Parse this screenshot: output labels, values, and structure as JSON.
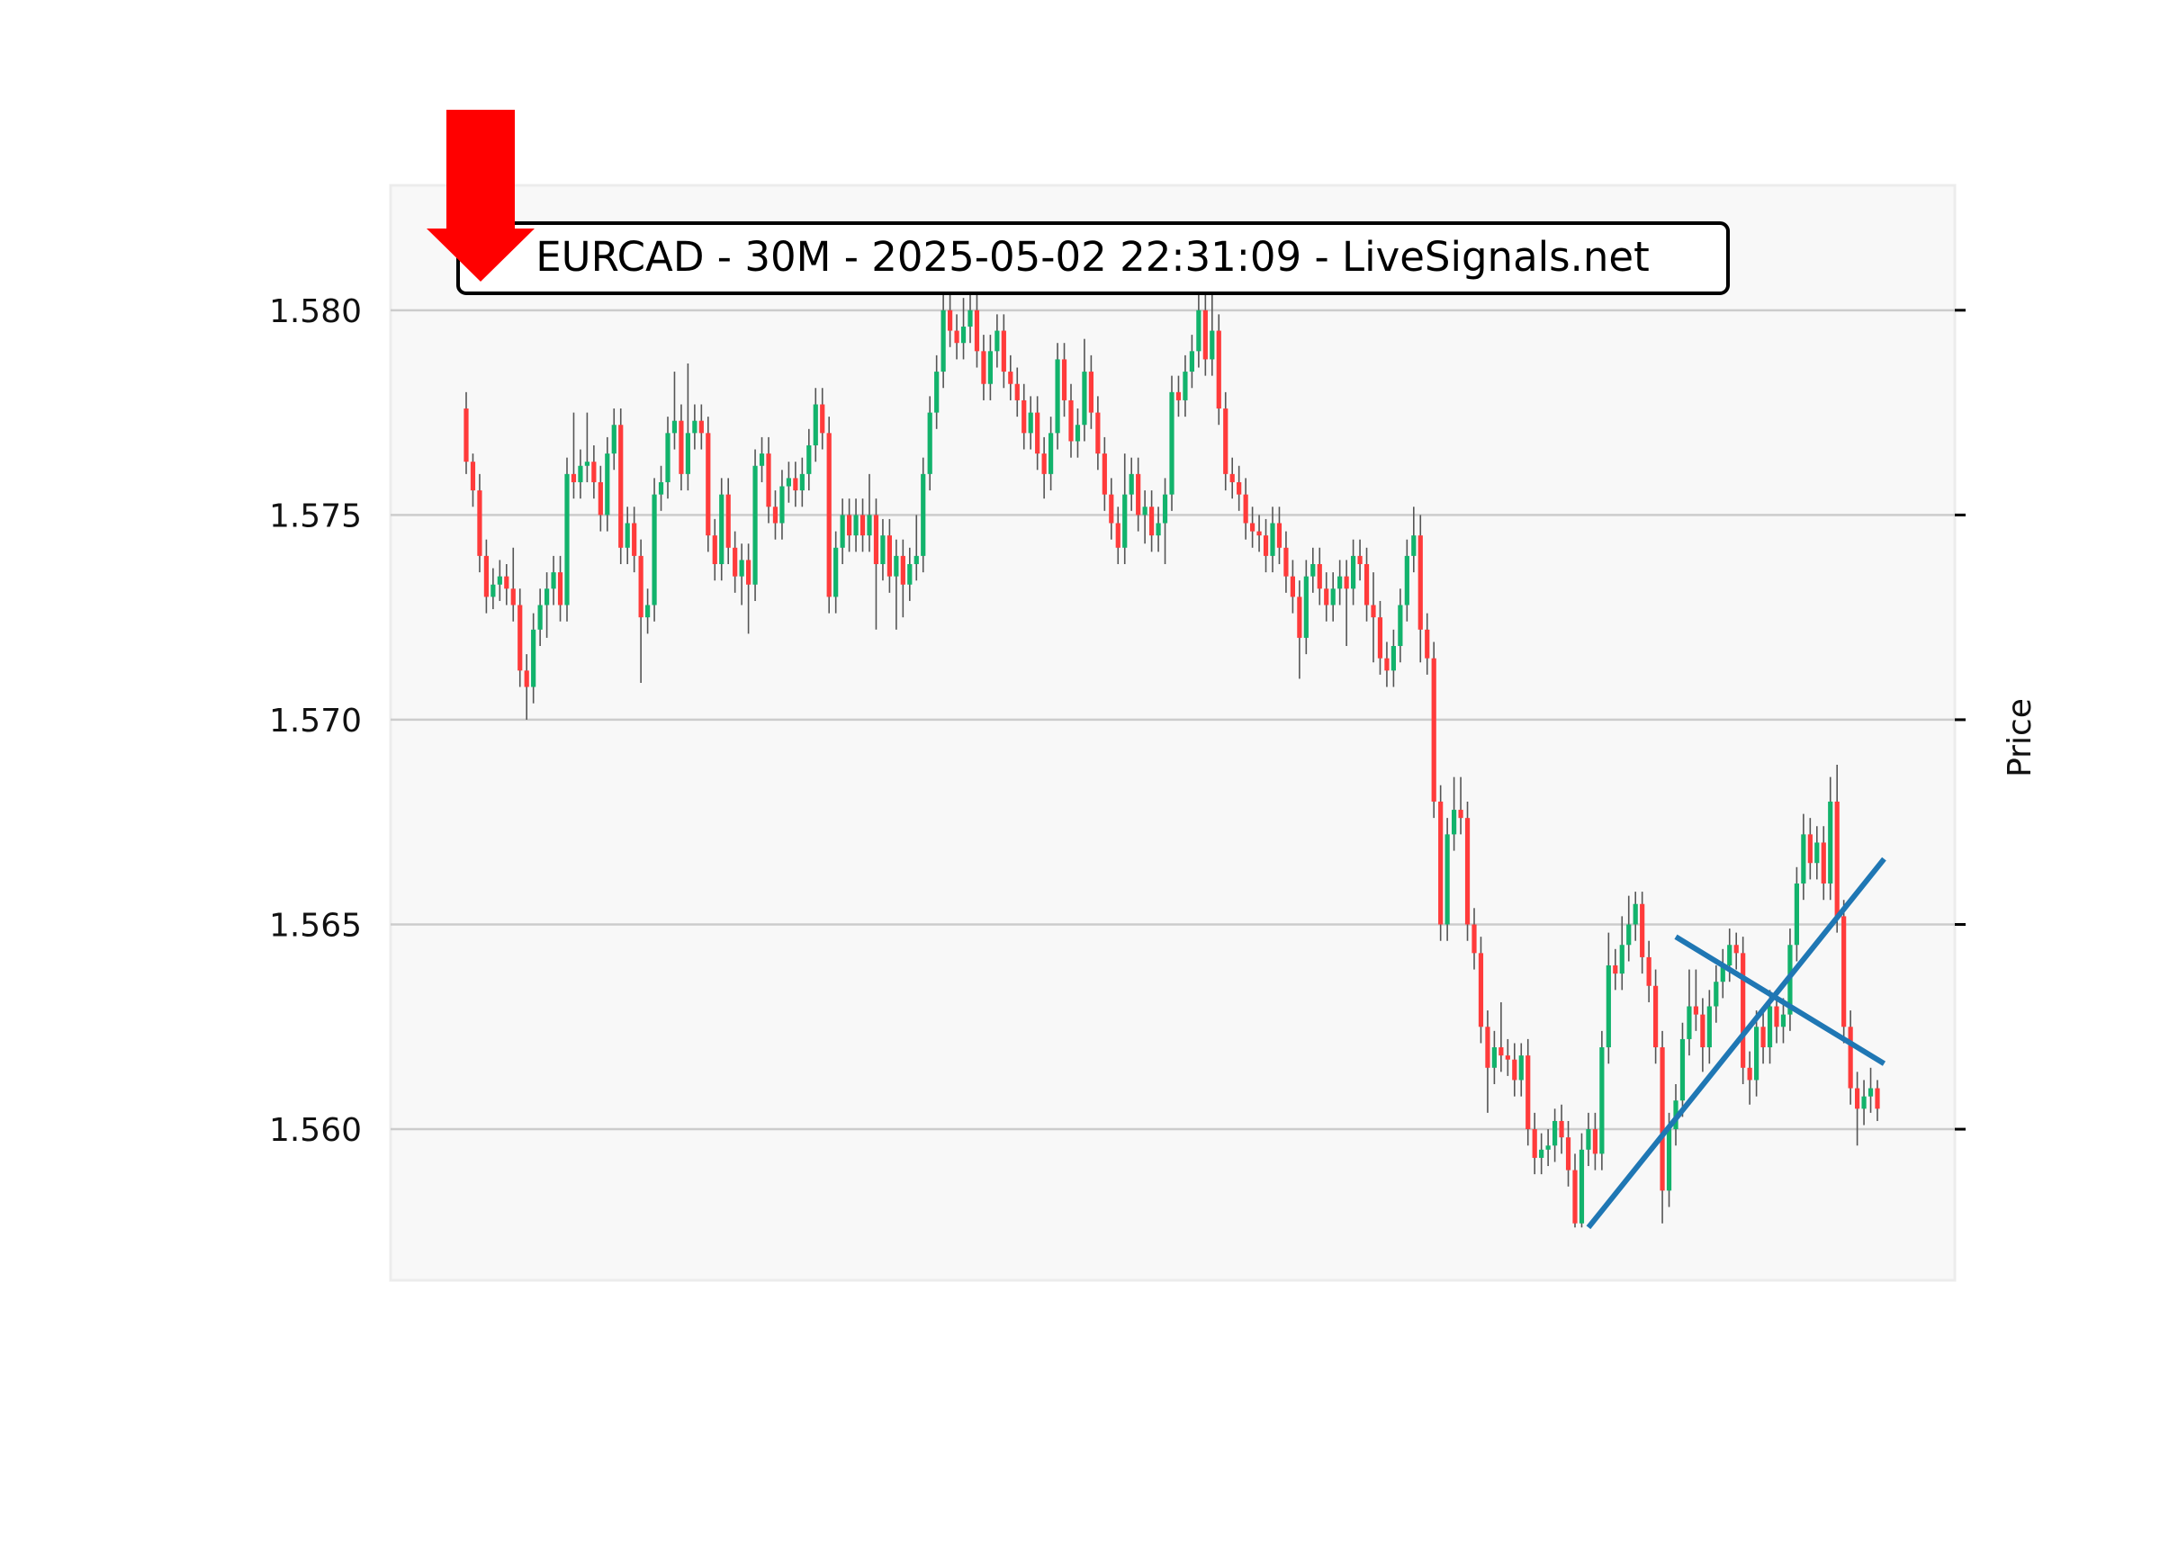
{
  "chart_data": {
    "type": "candlestick",
    "title": "EURCAD - 30M - 2025-05-02 22:31:09 - LiveSignals.net",
    "xlabel": "",
    "ylabel": "Price",
    "ylim": [
      1.55631,
      1.58305
    ],
    "yticks": [
      "1.560",
      "1.565",
      "1.570",
      "1.575",
      "1.580"
    ],
    "ytick_values": [
      1.56,
      1.565,
      1.57,
      1.575,
      1.58
    ],
    "grid": "horizontal",
    "colors": {
      "up": "#12b36c",
      "down": "#ff3b3b",
      "wick": "#555555",
      "trendline": "#1f77b4",
      "arrow": "#ff0000",
      "plot_bg": "#f8f8f8",
      "grid": "#cccccc"
    },
    "signal_arrow": "down",
    "ohlc": [
      [
        1.5776,
        1.578,
        1.576,
        1.5763
      ],
      [
        1.5763,
        1.5765,
        1.5752,
        1.5756
      ],
      [
        1.5756,
        1.576,
        1.5736,
        1.574
      ],
      [
        1.574,
        1.5744,
        1.5726,
        1.573
      ],
      [
        1.573,
        1.5737,
        1.5727,
        1.5733
      ],
      [
        1.5733,
        1.5739,
        1.5729,
        1.5735
      ],
      [
        1.5735,
        1.5738,
        1.5728,
        1.5732
      ],
      [
        1.5732,
        1.5742,
        1.5724,
        1.5728
      ],
      [
        1.5728,
        1.5732,
        1.5708,
        1.5712
      ],
      [
        1.5712,
        1.5716,
        1.57,
        1.5708
      ],
      [
        1.5708,
        1.5726,
        1.5704,
        1.5722
      ],
      [
        1.5722,
        1.5732,
        1.5718,
        1.5728
      ],
      [
        1.5728,
        1.5736,
        1.572,
        1.5732
      ],
      [
        1.5732,
        1.574,
        1.5728,
        1.5736
      ],
      [
        1.5736,
        1.574,
        1.5724,
        1.5728
      ],
      [
        1.5728,
        1.5764,
        1.5724,
        1.576
      ],
      [
        1.576,
        1.5775,
        1.5754,
        1.5758
      ],
      [
        1.5758,
        1.5766,
        1.5754,
        1.5762
      ],
      [
        1.5762,
        1.5775,
        1.5758,
        1.5763
      ],
      [
        1.5763,
        1.5767,
        1.5754,
        1.5758
      ],
      [
        1.5758,
        1.5762,
        1.5746,
        1.575
      ],
      [
        1.575,
        1.5769,
        1.5746,
        1.5765
      ],
      [
        1.5765,
        1.5776,
        1.5761,
        1.5772
      ],
      [
        1.5772,
        1.5776,
        1.5738,
        1.5742
      ],
      [
        1.5742,
        1.5752,
        1.5738,
        1.5748
      ],
      [
        1.5748,
        1.5752,
        1.5736,
        1.574
      ],
      [
        1.574,
        1.5744,
        1.5709,
        1.5725
      ],
      [
        1.5725,
        1.5732,
        1.5721,
        1.5728
      ],
      [
        1.5728,
        1.5759,
        1.5724,
        1.5755
      ],
      [
        1.5755,
        1.5762,
        1.5751,
        1.5758
      ],
      [
        1.5758,
        1.5774,
        1.5754,
        1.577
      ],
      [
        1.577,
        1.5785,
        1.5766,
        1.5773
      ],
      [
        1.5773,
        1.5777,
        1.5756,
        1.576
      ],
      [
        1.576,
        1.5787,
        1.5756,
        1.577
      ],
      [
        1.577,
        1.5777,
        1.5766,
        1.5773
      ],
      [
        1.5773,
        1.5777,
        1.5766,
        1.577
      ],
      [
        1.577,
        1.5774,
        1.5741,
        1.5745
      ],
      [
        1.5745,
        1.5749,
        1.5734,
        1.5738
      ],
      [
        1.5738,
        1.5759,
        1.5734,
        1.5755
      ],
      [
        1.5755,
        1.5759,
        1.5738,
        1.5742
      ],
      [
        1.5742,
        1.5746,
        1.5731,
        1.5735
      ],
      [
        1.5735,
        1.5743,
        1.5728,
        1.5739
      ],
      [
        1.5739,
        1.5743,
        1.5721,
        1.5733
      ],
      [
        1.5733,
        1.5766,
        1.5729,
        1.5762
      ],
      [
        1.5762,
        1.5769,
        1.5758,
        1.5765
      ],
      [
        1.5765,
        1.5769,
        1.5748,
        1.5752
      ],
      [
        1.5752,
        1.5756,
        1.5744,
        1.5748
      ],
      [
        1.5748,
        1.5761,
        1.5744,
        1.5757
      ],
      [
        1.5757,
        1.5763,
        1.5753,
        1.5759
      ],
      [
        1.5759,
        1.5763,
        1.5752,
        1.5756
      ],
      [
        1.5756,
        1.5764,
        1.5752,
        1.576
      ],
      [
        1.576,
        1.5771,
        1.5756,
        1.5767
      ],
      [
        1.5767,
        1.5781,
        1.5763,
        1.5777
      ],
      [
        1.5777,
        1.5781,
        1.5766,
        1.577
      ],
      [
        1.577,
        1.5774,
        1.5726,
        1.573
      ],
      [
        1.573,
        1.5746,
        1.5726,
        1.5742
      ],
      [
        1.5742,
        1.5754,
        1.5738,
        1.575
      ],
      [
        1.575,
        1.5754,
        1.5741,
        1.5745
      ],
      [
        1.5745,
        1.5754,
        1.5741,
        1.575
      ],
      [
        1.575,
        1.5754,
        1.5741,
        1.5745
      ],
      [
        1.5745,
        1.576,
        1.5741,
        1.575
      ],
      [
        1.575,
        1.5754,
        1.5722,
        1.5738
      ],
      [
        1.5738,
        1.5749,
        1.5734,
        1.5745
      ],
      [
        1.5745,
        1.5749,
        1.5731,
        1.5735
      ],
      [
        1.5735,
        1.5744,
        1.5722,
        1.574
      ],
      [
        1.574,
        1.5744,
        1.5725,
        1.5733
      ],
      [
        1.5733,
        1.5742,
        1.5729,
        1.5738
      ],
      [
        1.5738,
        1.575,
        1.5734,
        1.574
      ],
      [
        1.574,
        1.5764,
        1.5736,
        1.576
      ],
      [
        1.576,
        1.5779,
        1.5756,
        1.5775
      ],
      [
        1.5775,
        1.5789,
        1.5771,
        1.5785
      ],
      [
        1.5785,
        1.581,
        1.5781,
        1.58
      ],
      [
        1.58,
        1.5808,
        1.5791,
        1.5795
      ],
      [
        1.5795,
        1.5799,
        1.5788,
        1.5792
      ],
      [
        1.5792,
        1.5803,
        1.5788,
        1.5796
      ],
      [
        1.5796,
        1.5806,
        1.5792,
        1.58
      ],
      [
        1.58,
        1.5804,
        1.5786,
        1.579
      ],
      [
        1.579,
        1.5794,
        1.5778,
        1.5782
      ],
      [
        1.5782,
        1.5794,
        1.5778,
        1.579
      ],
      [
        1.579,
        1.5799,
        1.5786,
        1.5795
      ],
      [
        1.5795,
        1.5799,
        1.5781,
        1.5785
      ],
      [
        1.5785,
        1.5789,
        1.5778,
        1.5782
      ],
      [
        1.5782,
        1.5786,
        1.5774,
        1.5778
      ],
      [
        1.5778,
        1.5782,
        1.5766,
        1.577
      ],
      [
        1.577,
        1.5779,
        1.5766,
        1.5775
      ],
      [
        1.5775,
        1.5779,
        1.5761,
        1.5765
      ],
      [
        1.5765,
        1.5769,
        1.5754,
        1.576
      ],
      [
        1.576,
        1.5774,
        1.5756,
        1.577
      ],
      [
        1.577,
        1.5792,
        1.5766,
        1.5788
      ],
      [
        1.5788,
        1.5792,
        1.5774,
        1.5778
      ],
      [
        1.5778,
        1.5782,
        1.5764,
        1.5768
      ],
      [
        1.5768,
        1.5776,
        1.5764,
        1.5772
      ],
      [
        1.5772,
        1.5793,
        1.5768,
        1.5785
      ],
      [
        1.5785,
        1.5789,
        1.5771,
        1.5775
      ],
      [
        1.5775,
        1.5779,
        1.5761,
        1.5765
      ],
      [
        1.5765,
        1.5769,
        1.5751,
        1.5755
      ],
      [
        1.5755,
        1.5759,
        1.5744,
        1.5748
      ],
      [
        1.5748,
        1.5752,
        1.5738,
        1.5742
      ],
      [
        1.5742,
        1.5765,
        1.5738,
        1.5755
      ],
      [
        1.5755,
        1.5764,
        1.5751,
        1.576
      ],
      [
        1.576,
        1.5764,
        1.5746,
        1.575
      ],
      [
        1.575,
        1.5756,
        1.5743,
        1.5752
      ],
      [
        1.5752,
        1.5756,
        1.5741,
        1.5745
      ],
      [
        1.5745,
        1.5752,
        1.5741,
        1.5748
      ],
      [
        1.5748,
        1.5759,
        1.5738,
        1.5755
      ],
      [
        1.5755,
        1.5784,
        1.5751,
        1.578
      ],
      [
        1.578,
        1.5784,
        1.5774,
        1.5778
      ],
      [
        1.5778,
        1.5789,
        1.5774,
        1.5785
      ],
      [
        1.5785,
        1.5794,
        1.5781,
        1.579
      ],
      [
        1.579,
        1.5812,
        1.5786,
        1.58
      ],
      [
        1.58,
        1.5804,
        1.5784,
        1.5788
      ],
      [
        1.5788,
        1.581,
        1.5784,
        1.5795
      ],
      [
        1.5795,
        1.5799,
        1.5772,
        1.5776
      ],
      [
        1.5776,
        1.578,
        1.5756,
        1.576
      ],
      [
        1.576,
        1.5764,
        1.5754,
        1.5758
      ],
      [
        1.5758,
        1.5762,
        1.5751,
        1.5755
      ],
      [
        1.5755,
        1.5759,
        1.5744,
        1.5748
      ],
      [
        1.5748,
        1.5752,
        1.5742,
        1.5746
      ],
      [
        1.5746,
        1.575,
        1.5741,
        1.5745
      ],
      [
        1.5745,
        1.5749,
        1.5736,
        1.574
      ],
      [
        1.574,
        1.5752,
        1.5736,
        1.5748
      ],
      [
        1.5748,
        1.5752,
        1.5738,
        1.5742
      ],
      [
        1.5742,
        1.5746,
        1.5731,
        1.5735
      ],
      [
        1.5735,
        1.5739,
        1.5726,
        1.573
      ],
      [
        1.573,
        1.5734,
        1.571,
        1.572
      ],
      [
        1.572,
        1.5739,
        1.5716,
        1.5735
      ],
      [
        1.5735,
        1.5742,
        1.5731,
        1.5738
      ],
      [
        1.5738,
        1.5742,
        1.5728,
        1.5732
      ],
      [
        1.5732,
        1.5736,
        1.5724,
        1.5728
      ],
      [
        1.5728,
        1.5736,
        1.5724,
        1.5732
      ],
      [
        1.5732,
        1.5739,
        1.5728,
        1.5735
      ],
      [
        1.5735,
        1.5739,
        1.5718,
        1.5732
      ],
      [
        1.5732,
        1.5744,
        1.5728,
        1.574
      ],
      [
        1.574,
        1.5744,
        1.5734,
        1.5738
      ],
      [
        1.5738,
        1.5742,
        1.5724,
        1.5728
      ],
      [
        1.5728,
        1.5736,
        1.5714,
        1.5725
      ],
      [
        1.5725,
        1.5729,
        1.5711,
        1.5715
      ],
      [
        1.5715,
        1.5719,
        1.5708,
        1.5712
      ],
      [
        1.5712,
        1.5722,
        1.5708,
        1.5718
      ],
      [
        1.5718,
        1.5732,
        1.5714,
        1.5728
      ],
      [
        1.5728,
        1.5744,
        1.5724,
        1.574
      ],
      [
        1.574,
        1.5752,
        1.5736,
        1.5745
      ],
      [
        1.5745,
        1.575,
        1.5714,
        1.5722
      ],
      [
        1.5722,
        1.5726,
        1.5711,
        1.5715
      ],
      [
        1.5715,
        1.5719,
        1.5676,
        1.568
      ],
      [
        1.568,
        1.5684,
        1.5646,
        1.565
      ],
      [
        1.565,
        1.5676,
        1.5646,
        1.5672
      ],
      [
        1.5672,
        1.5686,
        1.5668,
        1.5678
      ],
      [
        1.5678,
        1.5686,
        1.5672,
        1.5676
      ],
      [
        1.5676,
        1.568,
        1.5646,
        1.565
      ],
      [
        1.565,
        1.5654,
        1.5639,
        1.5643
      ],
      [
        1.5643,
        1.5647,
        1.5621,
        1.5625
      ],
      [
        1.5625,
        1.5629,
        1.5604,
        1.5615
      ],
      [
        1.5615,
        1.5624,
        1.5611,
        1.562
      ],
      [
        1.562,
        1.5631,
        1.5614,
        1.5618
      ],
      [
        1.5618,
        1.5622,
        1.5613,
        1.5617
      ],
      [
        1.5617,
        1.5621,
        1.5608,
        1.5612
      ],
      [
        1.5612,
        1.5621,
        1.5608,
        1.5618
      ],
      [
        1.5618,
        1.5622,
        1.5596,
        1.56
      ],
      [
        1.56,
        1.5604,
        1.5589,
        1.5593
      ],
      [
        1.5593,
        1.5599,
        1.5589,
        1.5595
      ],
      [
        1.5595,
        1.56,
        1.5591,
        1.5596
      ],
      [
        1.5596,
        1.5605,
        1.5592,
        1.5602
      ],
      [
        1.5602,
        1.5606,
        1.5594,
        1.5598
      ],
      [
        1.5598,
        1.5602,
        1.5586,
        1.559
      ],
      [
        1.559,
        1.5594,
        1.5576,
        1.5577
      ],
      [
        1.5577,
        1.5599,
        1.5576,
        1.5595
      ],
      [
        1.5595,
        1.5604,
        1.5591,
        1.56
      ],
      [
        1.56,
        1.5604,
        1.559,
        1.5594
      ],
      [
        1.5594,
        1.5624,
        1.559,
        1.562
      ],
      [
        1.562,
        1.5648,
        1.5616,
        1.564
      ],
      [
        1.564,
        1.5644,
        1.5634,
        1.5638
      ],
      [
        1.5638,
        1.5652,
        1.5634,
        1.5645
      ],
      [
        1.5645,
        1.5657,
        1.5641,
        1.565
      ],
      [
        1.565,
        1.5658,
        1.5646,
        1.5655
      ],
      [
        1.5655,
        1.5658,
        1.5638,
        1.5642
      ],
      [
        1.5642,
        1.5646,
        1.5631,
        1.5635
      ],
      [
        1.5635,
        1.5639,
        1.5616,
        1.562
      ],
      [
        1.562,
        1.5624,
        1.5577,
        1.5585
      ],
      [
        1.5585,
        1.5604,
        1.5581,
        1.56
      ],
      [
        1.56,
        1.5611,
        1.5596,
        1.5607
      ],
      [
        1.5607,
        1.5626,
        1.5603,
        1.5622
      ],
      [
        1.5622,
        1.5639,
        1.5618,
        1.563
      ],
      [
        1.563,
        1.5639,
        1.5624,
        1.5628
      ],
      [
        1.5628,
        1.5632,
        1.5614,
        1.562
      ],
      [
        1.562,
        1.5634,
        1.5616,
        1.563
      ],
      [
        1.563,
        1.564,
        1.5626,
        1.5636
      ],
      [
        1.5636,
        1.5644,
        1.5632,
        1.564
      ],
      [
        1.564,
        1.5649,
        1.5636,
        1.5645
      ],
      [
        1.5645,
        1.5648,
        1.5639,
        1.5643
      ],
      [
        1.5643,
        1.5647,
        1.5611,
        1.5615
      ],
      [
        1.5615,
        1.5619,
        1.5606,
        1.5612
      ],
      [
        1.5612,
        1.5629,
        1.5608,
        1.5625
      ],
      [
        1.5625,
        1.5629,
        1.5616,
        1.562
      ],
      [
        1.562,
        1.5634,
        1.5616,
        1.563
      ],
      [
        1.563,
        1.5634,
        1.5621,
        1.5625
      ],
      [
        1.5625,
        1.5632,
        1.5621,
        1.5628
      ],
      [
        1.5628,
        1.5649,
        1.5624,
        1.5645
      ],
      [
        1.5645,
        1.5664,
        1.5641,
        1.566
      ],
      [
        1.566,
        1.5677,
        1.5656,
        1.5672
      ],
      [
        1.5672,
        1.5676,
        1.5661,
        1.5665
      ],
      [
        1.5665,
        1.5674,
        1.5661,
        1.567
      ],
      [
        1.567,
        1.5674,
        1.5656,
        1.566
      ],
      [
        1.566,
        1.5686,
        1.5656,
        1.568
      ],
      [
        1.568,
        1.5689,
        1.5648,
        1.5652
      ],
      [
        1.5652,
        1.5656,
        1.5621,
        1.5625
      ],
      [
        1.5625,
        1.5629,
        1.5606,
        1.561
      ],
      [
        1.561,
        1.5614,
        1.5596,
        1.5605
      ],
      [
        1.5605,
        1.5612,
        1.5601,
        1.5608
      ],
      [
        1.5608,
        1.5615,
        1.5604,
        1.561
      ],
      [
        1.561,
        1.5612,
        1.5602,
        1.5605
      ]
    ],
    "trendlines": [
      {
        "from": [
          167,
          1.5576
        ],
        "to": [
          211,
          1.5666
        ]
      },
      {
        "from": [
          180,
          1.5647
        ],
        "to": [
          211,
          1.5616
        ]
      }
    ]
  }
}
